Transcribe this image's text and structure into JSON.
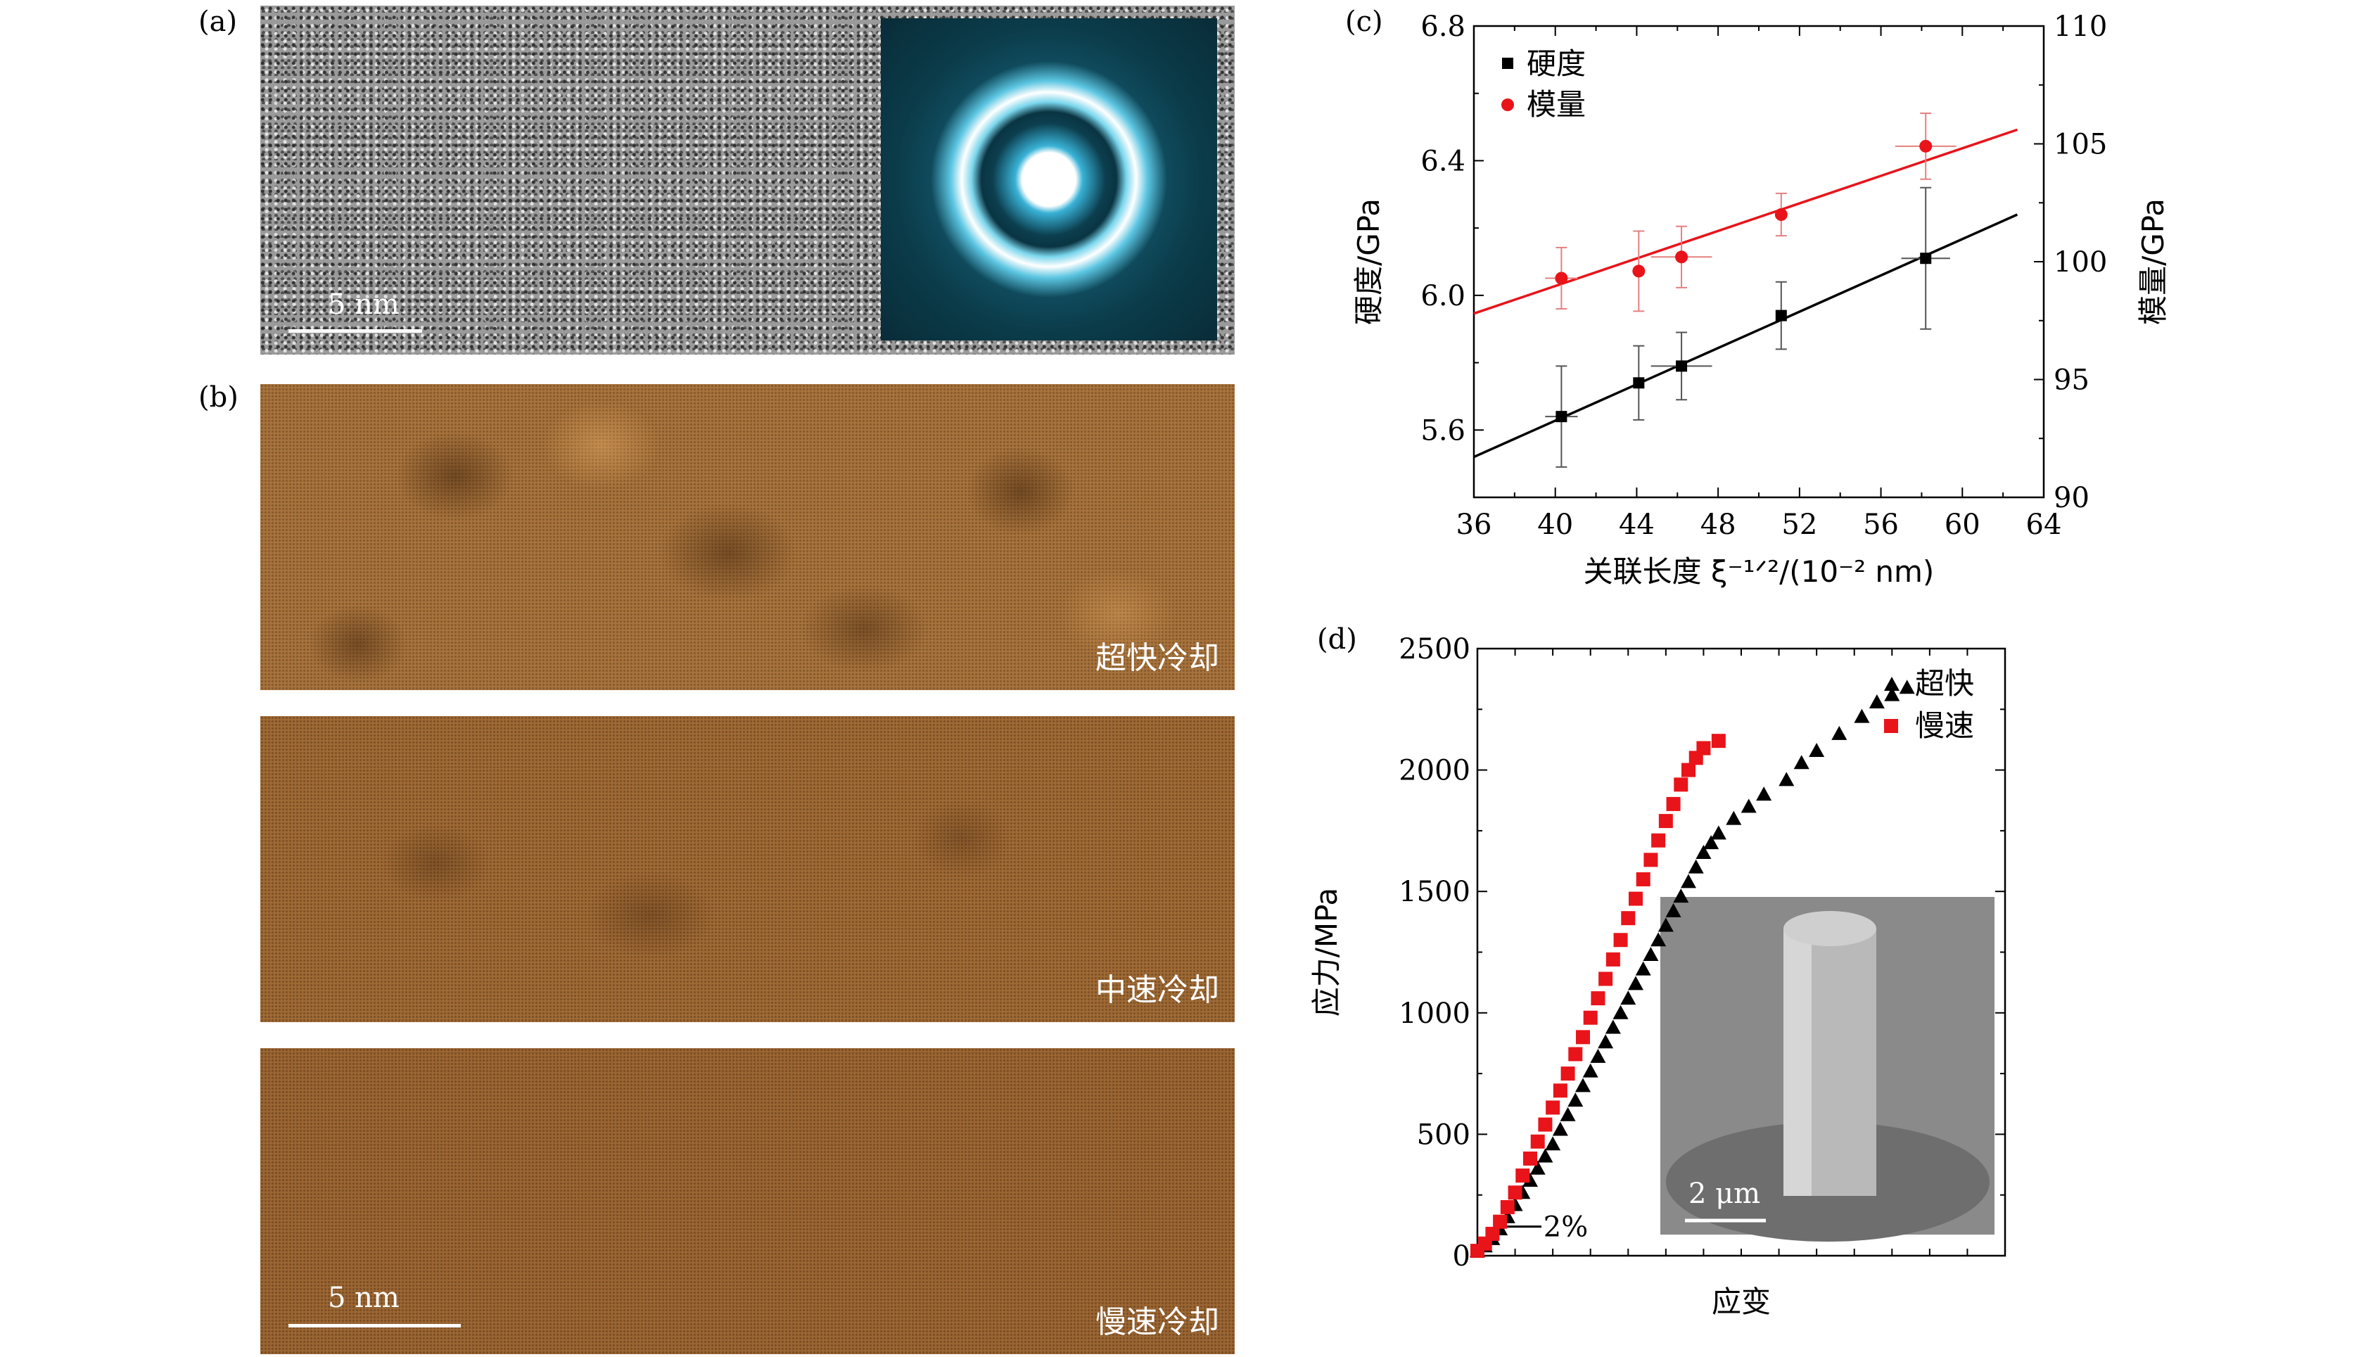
{
  "panels": {
    "a": "(a)",
    "b": "(b)",
    "c": "(c)",
    "d": "(d)"
  },
  "panel_a": {
    "scale": "5 nm"
  },
  "panel_b": {
    "scale": "5 nm",
    "captions": [
      "超快冷却",
      "中速冷却",
      "慢速冷却"
    ]
  },
  "chart_data": [
    {
      "type": "scatter",
      "panel": "c",
      "xlabel": "关联长度 ξ⁻¹ᐟ²/(10⁻² nm)",
      "ylabel_left": "硬度/GPa",
      "ylabel_right": "模量/GPa",
      "xlim": [
        36,
        64
      ],
      "ylim_left": [
        5.4,
        6.8
      ],
      "ylim_right": [
        90,
        110
      ],
      "xticks": [
        "36",
        "40",
        "44",
        "48",
        "52",
        "56",
        "60",
        "64"
      ],
      "yticks_left": [
        "5.6",
        "6.0",
        "6.4",
        "6.8"
      ],
      "yticks_right": [
        "90",
        "95",
        "100",
        "105",
        "110"
      ],
      "series": [
        {
          "name": "硬度",
          "color": "#000000",
          "marker": "square",
          "axis": "left",
          "x": [
            40.3,
            44.1,
            46.2,
            51.1,
            58.2
          ],
          "y": [
            5.64,
            5.74,
            5.79,
            5.94,
            6.11
          ],
          "yerr": [
            0.15,
            0.11,
            0.1,
            0.1,
            0.21
          ],
          "xerr": [
            0.8,
            0,
            1.5,
            0,
            1.2
          ],
          "fit": [
            [
              36,
              5.52
            ],
            [
              62.7,
              6.24
            ]
          ],
          "fit_color": "#000000"
        },
        {
          "name": "模量",
          "color": "#e8141a",
          "marker": "circle",
          "axis": "right",
          "x": [
            40.3,
            44.1,
            46.2,
            51.1,
            58.2
          ],
          "y": [
            99.3,
            99.6,
            100.2,
            102.0,
            104.9
          ],
          "yerr": [
            1.3,
            1.7,
            1.3,
            0.9,
            1.4
          ],
          "xerr": [
            0.8,
            0,
            1.5,
            0,
            1.5
          ],
          "fit": [
            [
              36,
              97.8
            ],
            [
              62.7,
              105.6
            ]
          ],
          "fit_color": "#e8141a"
        }
      ]
    },
    {
      "type": "scatter",
      "panel": "d",
      "xlabel": "应变",
      "ylabel": "应力/MPa",
      "ylim": [
        0,
        2500
      ],
      "yticks": [
        "0",
        "500",
        "1000",
        "1500",
        "2000",
        "2500"
      ],
      "annotation": "2%",
      "inset_scale": "2 μm",
      "series": [
        {
          "name": "超快",
          "color": "#000000",
          "marker": "triangle",
          "x": [
            0,
            0.2,
            0.4,
            0.6,
            0.8,
            1.0,
            1.2,
            1.4,
            1.6,
            1.8,
            2.0,
            2.2,
            2.4,
            2.6,
            2.8,
            3.0,
            3.2,
            3.4,
            3.6,
            3.8,
            4.0,
            4.2,
            4.4,
            4.6,
            4.8,
            5.0,
            5.2,
            5.4,
            5.6,
            5.8,
            6.0,
            6.2,
            6.4,
            6.8,
            7.2,
            7.6,
            8.2,
            8.6,
            9.0,
            9.6,
            10.2,
            10.6,
            11.0,
            11.4
          ],
          "y": [
            20,
            40,
            70,
            110,
            160,
            210,
            260,
            310,
            360,
            410,
            460,
            520,
            580,
            640,
            700,
            760,
            820,
            880,
            940,
            1000,
            1060,
            1120,
            1180,
            1240,
            1300,
            1360,
            1420,
            1480,
            1540,
            1600,
            1660,
            1700,
            1740,
            1800,
            1850,
            1900,
            1960,
            2030,
            2080,
            2150,
            2220,
            2280,
            2310,
            2340
          ]
        },
        {
          "name": "慢速",
          "color": "#e8141a",
          "marker": "square",
          "x": [
            0,
            0.2,
            0.4,
            0.6,
            0.8,
            1.0,
            1.2,
            1.4,
            1.6,
            1.8,
            2.0,
            2.2,
            2.4,
            2.6,
            2.8,
            3.0,
            3.2,
            3.4,
            3.6,
            3.8,
            4.0,
            4.2,
            4.4,
            4.6,
            4.8,
            5.0,
            5.2,
            5.4,
            5.6,
            5.8,
            6.0,
            6.4
          ],
          "y": [
            20,
            50,
            90,
            140,
            200,
            260,
            330,
            400,
            470,
            540,
            610,
            680,
            750,
            830,
            900,
            980,
            1060,
            1140,
            1220,
            1300,
            1390,
            1470,
            1550,
            1630,
            1710,
            1790,
            1860,
            1940,
            2000,
            2050,
            2090,
            2120
          ]
        }
      ]
    }
  ]
}
